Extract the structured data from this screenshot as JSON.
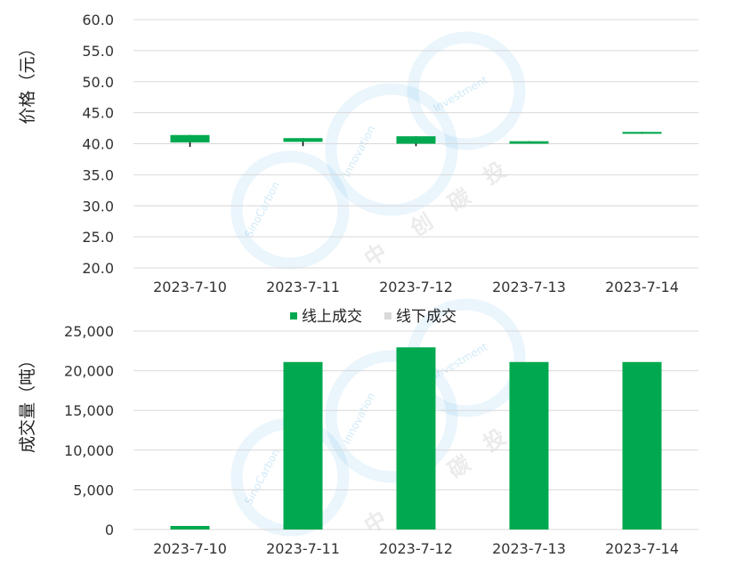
{
  "chart_data": [
    {
      "type": "candlestick",
      "ylabel": "价格（元）",
      "ylim": [
        20,
        60
      ],
      "yticks": [
        "20.0",
        "25.0",
        "30.0",
        "35.0",
        "40.0",
        "45.0",
        "50.0",
        "55.0",
        "60.0"
      ],
      "categories": [
        "2023-7-10",
        "2023-7-11",
        "2023-7-12",
        "2023-7-13",
        "2023-7-14"
      ],
      "series": [
        {
          "open": [
            40.2,
            40.3,
            40.0,
            40.0,
            41.6
          ],
          "close": [
            41.4,
            40.9,
            41.2,
            40.4,
            41.9
          ],
          "high": [
            41.4,
            40.9,
            41.2,
            40.4,
            41.9
          ],
          "low": [
            39.5,
            39.6,
            39.6,
            40.0,
            41.6
          ]
        }
      ],
      "up_color": "#00a94f",
      "wick_color": "#000000",
      "grid": true
    },
    {
      "type": "bar",
      "ylabel": "成交量（吨）",
      "ylim": [
        0,
        25000
      ],
      "yticks": [
        "0",
        "5,000",
        "10,000",
        "15,000",
        "20,000",
        "25,000"
      ],
      "categories": [
        "2023-7-10",
        "2023-7-11",
        "2023-7-12",
        "2023-7-13",
        "2023-7-14"
      ],
      "series": [
        {
          "name": "线上成交",
          "color": "#00a94f",
          "values": [
            450,
            21100,
            22950,
            21100,
            21100
          ]
        },
        {
          "name": "线下成交",
          "color": "#d9d9d9",
          "values": [
            0,
            0,
            0,
            0,
            0
          ]
        }
      ],
      "legend": "top",
      "grid": true
    }
  ],
  "watermark": {
    "brand": "SinoCarbon",
    "arc1": "Innovation",
    "arc2": "Investment",
    "chinese": [
      "中",
      "创",
      "碳",
      "投"
    ],
    "color": "#5ab4e5"
  }
}
